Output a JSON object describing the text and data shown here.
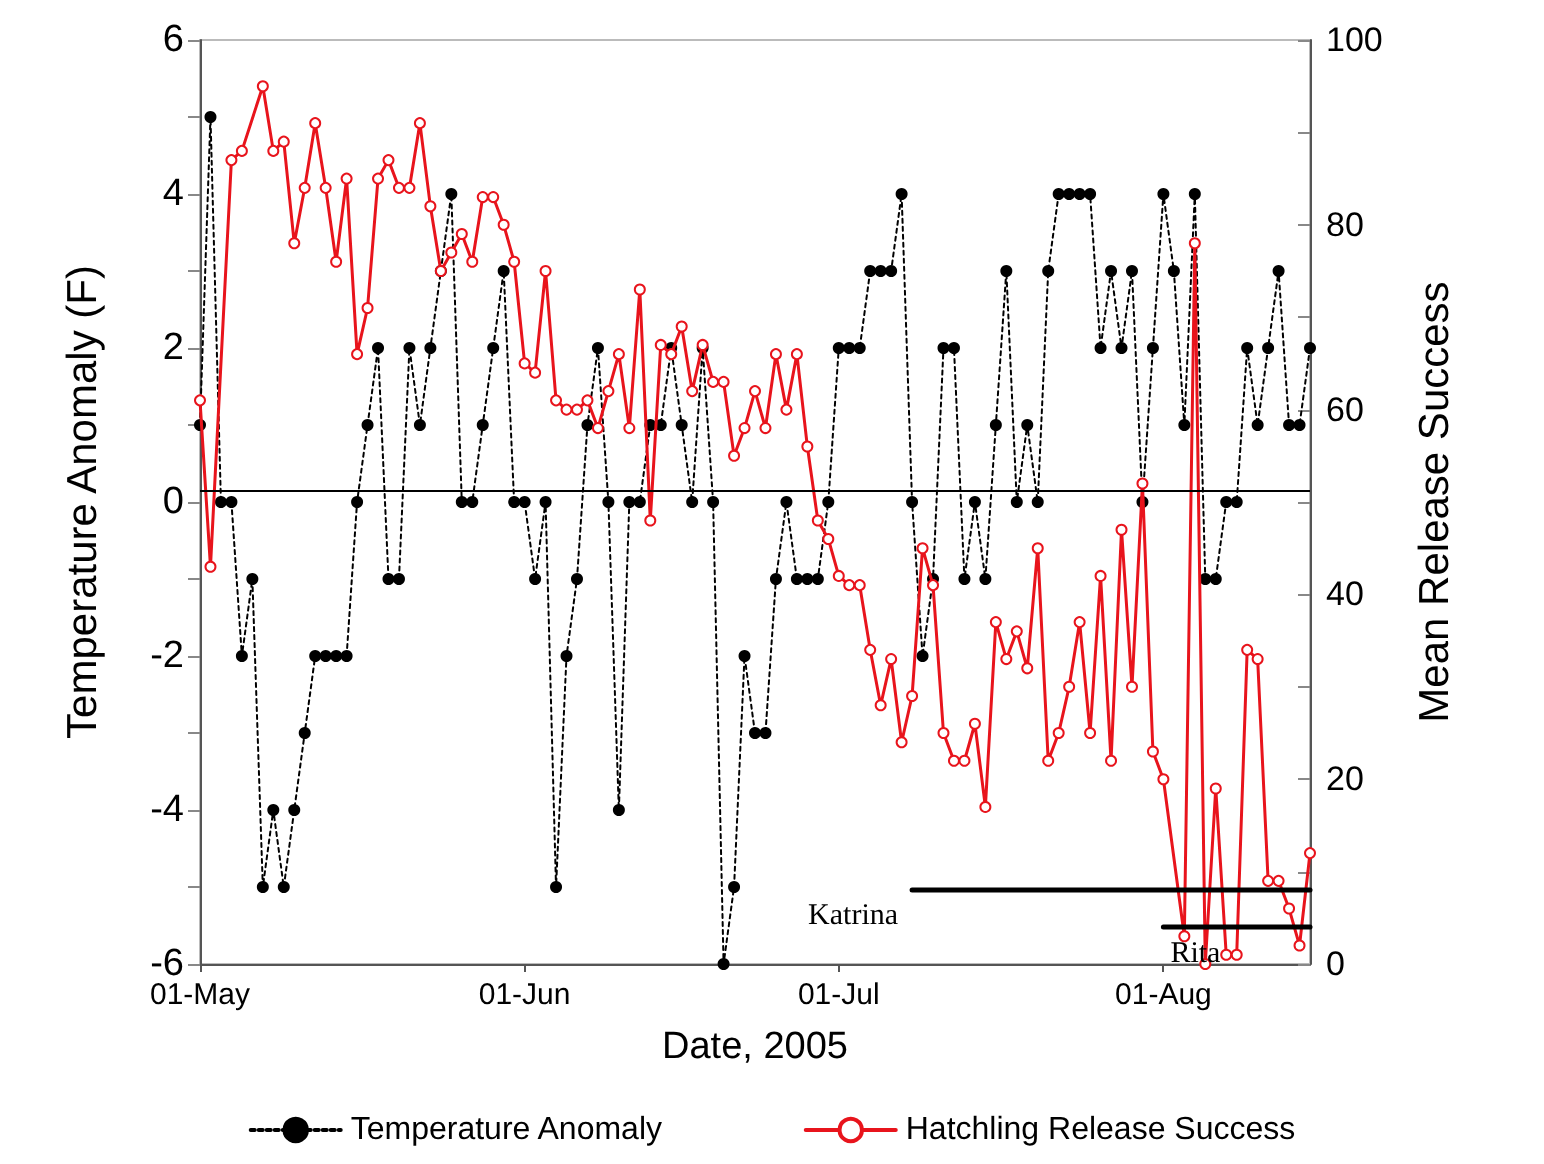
{
  "chart_data": {
    "type": "line",
    "xlabel": "Date, 2005",
    "ylabel": "Temperature Anomaly (F)",
    "y2label": "Mean Release Success",
    "x": [
      "2005-05-01",
      "2005-05-02",
      "2005-05-03",
      "2005-05-04",
      "2005-05-05",
      "2005-05-06",
      "2005-05-07",
      "2005-05-08",
      "2005-05-09",
      "2005-05-10",
      "2005-05-11",
      "2005-05-12",
      "2005-05-13",
      "2005-05-14",
      "2005-05-15",
      "2005-05-16",
      "2005-05-17",
      "2005-05-18",
      "2005-05-19",
      "2005-05-20",
      "2005-05-21",
      "2005-05-22",
      "2005-05-23",
      "2005-05-24",
      "2005-05-25",
      "2005-05-26",
      "2005-05-27",
      "2005-05-28",
      "2005-05-29",
      "2005-05-30",
      "2005-05-31",
      "2005-06-01",
      "2005-06-02",
      "2005-06-03",
      "2005-06-04",
      "2005-06-05",
      "2005-06-06",
      "2005-06-07",
      "2005-06-08",
      "2005-06-09",
      "2005-06-10",
      "2005-06-11",
      "2005-06-12",
      "2005-06-13",
      "2005-06-14",
      "2005-06-15",
      "2005-06-16",
      "2005-06-17",
      "2005-06-18",
      "2005-06-19",
      "2005-06-20",
      "2005-06-21",
      "2005-06-22",
      "2005-06-23",
      "2005-06-24",
      "2005-06-25",
      "2005-06-26",
      "2005-06-27",
      "2005-06-28",
      "2005-06-29",
      "2005-06-30",
      "2005-07-01",
      "2005-07-02",
      "2005-07-03",
      "2005-07-04",
      "2005-07-05",
      "2005-07-06",
      "2005-07-07",
      "2005-07-08",
      "2005-07-09",
      "2005-07-10",
      "2005-07-11",
      "2005-07-12",
      "2005-07-13",
      "2005-07-14",
      "2005-07-15",
      "2005-07-16",
      "2005-07-17",
      "2005-07-18",
      "2005-07-19",
      "2005-07-20",
      "2005-07-21",
      "2005-07-22",
      "2005-07-23",
      "2005-07-24",
      "2005-07-25",
      "2005-07-26",
      "2005-07-27",
      "2005-07-28",
      "2005-07-29",
      "2005-07-30",
      "2005-07-31",
      "2005-08-01",
      "2005-08-02",
      "2005-08-03",
      "2005-08-04",
      "2005-08-05",
      "2005-08-06",
      "2005-08-07",
      "2005-08-08",
      "2005-08-09",
      "2005-08-10",
      "2005-08-11",
      "2005-08-12",
      "2005-08-13",
      "2005-08-14",
      "2005-08-15"
    ],
    "series": [
      {
        "name": "Temperature Anomaly",
        "color": "#000000",
        "marker": "circle",
        "line_style": "dotted",
        "values": [
          1,
          5,
          0,
          0,
          -2,
          -1,
          -5,
          -4,
          -5,
          -4,
          -3,
          -2,
          -2,
          -2,
          -2,
          0,
          1,
          2,
          -1,
          -1,
          2,
          1,
          2,
          3,
          4,
          0,
          0,
          1,
          2,
          3,
          0,
          0,
          -1,
          0,
          -5,
          -2,
          -1,
          1,
          2,
          0,
          -4,
          0,
          0,
          1,
          1,
          2,
          1,
          0,
          2,
          0,
          -6,
          -5,
          -2,
          -3,
          -3,
          -1,
          0,
          -1,
          -1,
          -1,
          0,
          2,
          2,
          2,
          3,
          3,
          3,
          4,
          0,
          -2,
          -1,
          2,
          2,
          -1,
          0,
          -1,
          1,
          3,
          0,
          1,
          0,
          3,
          4,
          4,
          4,
          4,
          2,
          3,
          2,
          3,
          0,
          2,
          4,
          3,
          1,
          4,
          -1,
          -1,
          0,
          0,
          2,
          1,
          2,
          3,
          1,
          1,
          2
        ]
      },
      {
        "name": "Hatchling Release Success",
        "color": "#e8141c",
        "marker": "circle",
        "line_style": "solid",
        "axis": "y2",
        "x": [
          "2005-05-01",
          "2005-05-02",
          "2005-05-04",
          "2005-05-05",
          "2005-05-07",
          "2005-05-08",
          "2005-05-09",
          "2005-05-10",
          "2005-05-11",
          "2005-05-12",
          "2005-05-13",
          "2005-05-14",
          "2005-05-15",
          "2005-05-16",
          "2005-05-17",
          "2005-05-18",
          "2005-05-19",
          "2005-05-20",
          "2005-05-21",
          "2005-05-22",
          "2005-05-23",
          "2005-05-24",
          "2005-05-25",
          "2005-05-26",
          "2005-05-27",
          "2005-05-28",
          "2005-05-29",
          "2005-05-30",
          "2005-05-31",
          "2005-06-01",
          "2005-06-02",
          "2005-06-03",
          "2005-06-04",
          "2005-06-05",
          "2005-06-06",
          "2005-06-07",
          "2005-06-08",
          "2005-06-09",
          "2005-06-10",
          "2005-06-11",
          "2005-06-12",
          "2005-06-13",
          "2005-06-14",
          "2005-06-15",
          "2005-06-16",
          "2005-06-17",
          "2005-06-18",
          "2005-06-19",
          "2005-06-20",
          "2005-06-21",
          "2005-06-22",
          "2005-06-23",
          "2005-06-24",
          "2005-06-25",
          "2005-06-26",
          "2005-06-27",
          "2005-06-28",
          "2005-06-29",
          "2005-06-30",
          "2005-07-01",
          "2005-07-02",
          "2005-07-03",
          "2005-07-04",
          "2005-07-05",
          "2005-07-06",
          "2005-07-07",
          "2005-07-08",
          "2005-07-09",
          "2005-07-10",
          "2005-07-11",
          "2005-07-12",
          "2005-07-13",
          "2005-07-14",
          "2005-07-15",
          "2005-07-16",
          "2005-07-17",
          "2005-07-18",
          "2005-07-19",
          "2005-07-20",
          "2005-07-21",
          "2005-07-22",
          "2005-07-23",
          "2005-07-24",
          "2005-07-25",
          "2005-07-26",
          "2005-07-27",
          "2005-07-28",
          "2005-07-29",
          "2005-07-30",
          "2005-07-31",
          "2005-08-01",
          "2005-08-03",
          "2005-08-04",
          "2005-08-05",
          "2005-08-06",
          "2005-08-07",
          "2005-08-08",
          "2005-08-09",
          "2005-08-10",
          "2005-08-11",
          "2005-08-12",
          "2005-08-13",
          "2005-08-14",
          "2005-08-15"
        ],
        "values": [
          61,
          43,
          87,
          88,
          95,
          88,
          89,
          78,
          84,
          91,
          84,
          76,
          85,
          66,
          71,
          85,
          87,
          84,
          84,
          91,
          82,
          75,
          77,
          79,
          76,
          83,
          83,
          80,
          76,
          65,
          64,
          75,
          61,
          60,
          60,
          61,
          58,
          62,
          66,
          58,
          73,
          48,
          67,
          66,
          69,
          62,
          67,
          63,
          63,
          55,
          58,
          62,
          58,
          66,
          60,
          66,
          56,
          48,
          46,
          42,
          41,
          41,
          34,
          28,
          33,
          24,
          29,
          45,
          41,
          25,
          22,
          22,
          26,
          17,
          37,
          33,
          36,
          32,
          45,
          22,
          25,
          30,
          37,
          25,
          42,
          22,
          47,
          30,
          52,
          23,
          20,
          3,
          78,
          0,
          19,
          1,
          1,
          34,
          33,
          9,
          9,
          6,
          2,
          12
        ]
      },
      {
        "name": "Katrina",
        "color": "#000000",
        "marker": "none",
        "line_style": "solid",
        "axis": "y2",
        "x": [
          "2005-07-08",
          "2005-08-15"
        ],
        "values": [
          8,
          8
        ]
      },
      {
        "name": "Rita",
        "color": "#000000",
        "marker": "none",
        "line_style": "solid",
        "axis": "y2",
        "x": [
          "2005-08-01",
          "2005-08-15"
        ],
        "values": [
          4,
          4
        ]
      }
    ],
    "xlim": [
      "2005-05-01",
      "2005-08-15"
    ],
    "xticks": [
      {
        "value": "2005-05-01",
        "label": "01-May"
      },
      {
        "value": "2005-06-01",
        "label": "01-Jun"
      },
      {
        "value": "2005-07-01",
        "label": "01-Jul"
      },
      {
        "value": "2005-08-01",
        "label": "01-Aug"
      }
    ],
    "ylim": [
      -6,
      6
    ],
    "yticks": [
      -6,
      {
        "value": -5,
        "label": null
      },
      -4,
      {
        "value": -3,
        "label": null
      },
      -2,
      {
        "value": -1,
        "label": null
      },
      0,
      {
        "value": 1,
        "label": null
      },
      2,
      {
        "value": 3,
        "label": null
      },
      4,
      {
        "value": 5,
        "label": null
      },
      6
    ],
    "y2lim": [
      0,
      100
    ],
    "y2ticks": [
      0,
      {
        "value": 10,
        "label": null
      },
      20,
      {
        "value": 30,
        "label": null
      },
      40,
      {
        "value": 50,
        "label": null
      },
      60,
      {
        "value": 70,
        "label": null
      },
      80,
      {
        "value": 90,
        "label": null
      },
      100
    ],
    "ref_lines": [
      {
        "axis": "y",
        "value": 0.15,
        "color": "#000000"
      }
    ],
    "grid": false,
    "legend": "bottom"
  }
}
